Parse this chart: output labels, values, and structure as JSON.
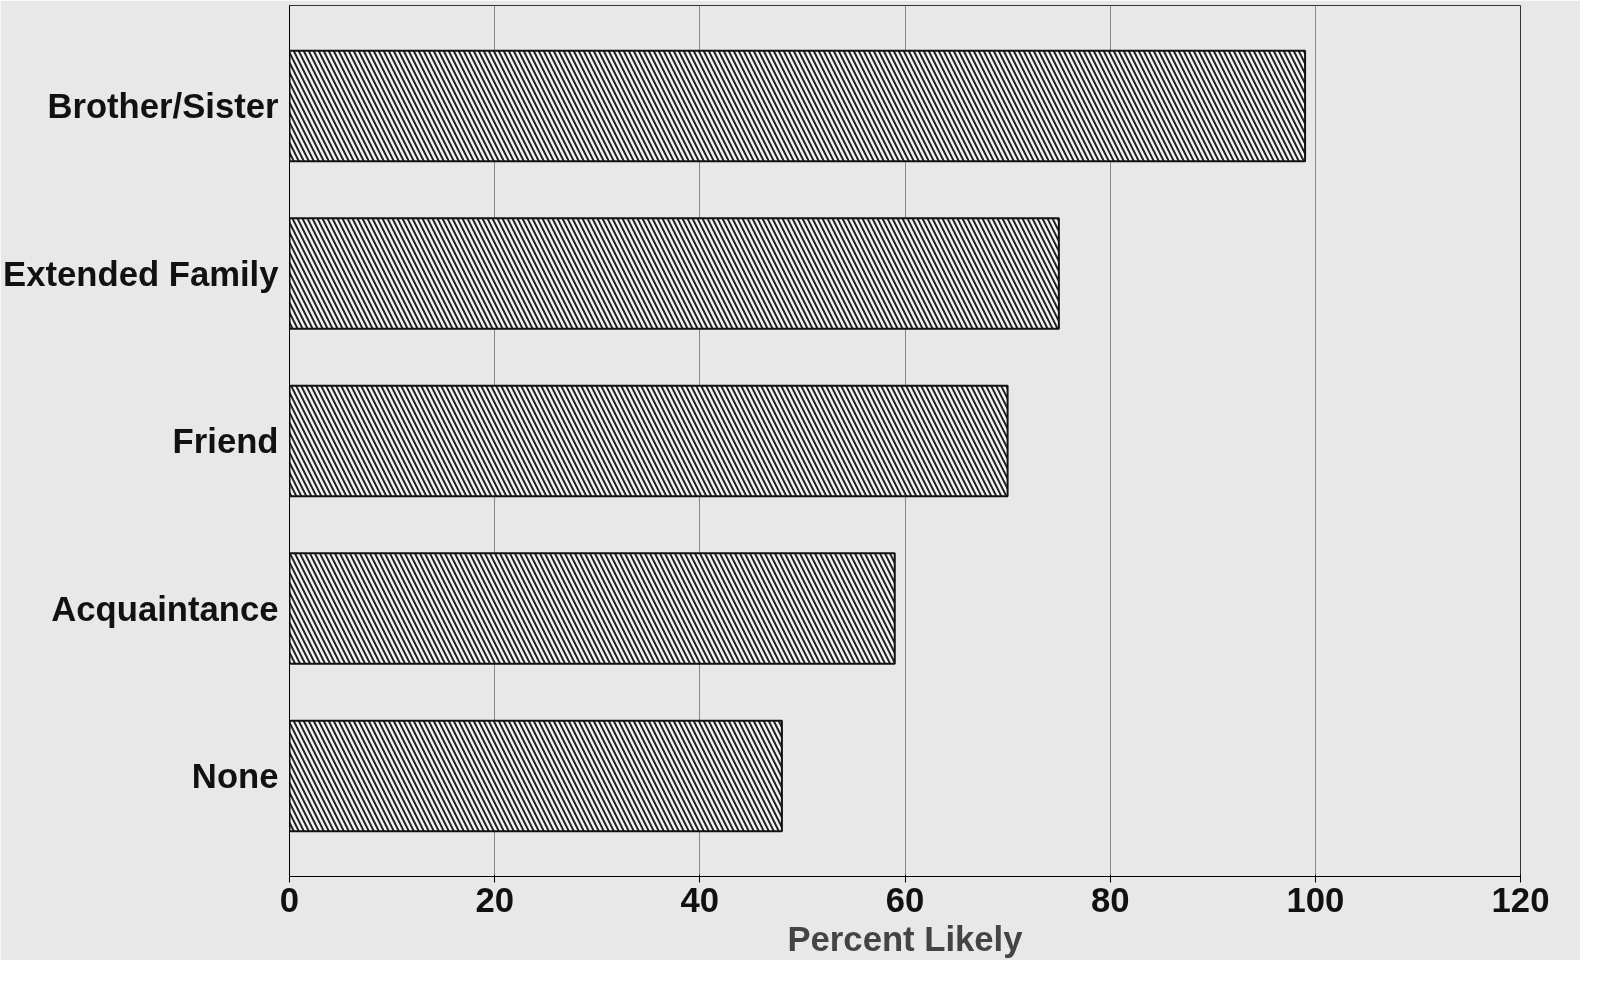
{
  "chart_data": {
    "type": "bar",
    "orientation": "horizontal",
    "categories": [
      "Brother/Sister",
      "Extended Family",
      "Friend",
      "Acquaintance",
      "None"
    ],
    "values": [
      99,
      75,
      70,
      59,
      48
    ],
    "color": "#f4f4f4",
    "xlabel": "Percent Likely",
    "xlim": [
      0,
      120
    ],
    "xticks": [
      0,
      20,
      40,
      60,
      80,
      100,
      120
    ],
    "grid": "x"
  }
}
